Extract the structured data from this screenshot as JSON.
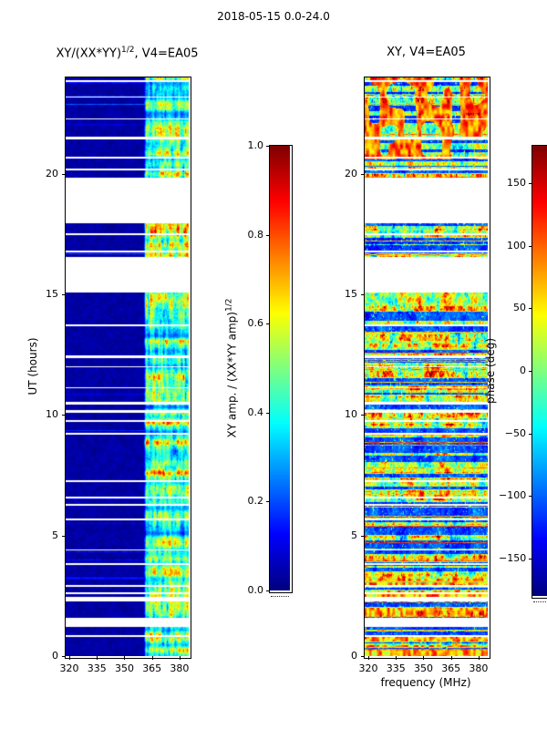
{
  "figure_title": "2018-05-15 0.0-24.0",
  "chart_data": [
    {
      "type": "heatmap",
      "panel": "left",
      "title": "XY/(XX*YY)^{1/2}, V4=EA05",
      "title_parts": [
        "XY/(XX*YY)",
        "1/2",
        ", V4=EA05"
      ],
      "xlabel": "",
      "ylabel": "UT (hours)",
      "x_axis": {
        "range_mhz": [
          318,
          385
        ],
        "ticks": [
          "320",
          "335",
          "350",
          "365",
          "380"
        ],
        "tick_values": [
          320,
          335,
          350,
          365,
          380
        ]
      },
      "y_axis": {
        "range_hours": [
          0,
          24
        ],
        "ticks": [
          "0",
          "5",
          "10",
          "15",
          "20"
        ],
        "tick_values": [
          0,
          5,
          10,
          15,
          20
        ]
      },
      "colormap": "jet",
      "clim": [
        0.0,
        1.0
      ],
      "colorbar": {
        "label": "XY amp. / (XX*YY amp)^{1/2}",
        "label_parts": [
          "XY amp. / (XX*YY amp)",
          "1/2"
        ],
        "ticks": [
          {
            "label": "1.0",
            "value": 1.0
          },
          {
            "label": "0.8",
            "value": 0.8
          },
          {
            "label": "0.6",
            "value": 0.6
          },
          {
            "label": "0.4",
            "value": 0.4
          },
          {
            "label": "0.2",
            "value": 0.2
          },
          {
            "label": "0.0",
            "value": 0.0
          }
        ]
      },
      "content_summary": {
        "background_amplitude": 0.05,
        "rfi_band_mhz": [
          361,
          385
        ],
        "rfi_band_amplitude": [
          0.3,
          0.9
        ],
        "data_gaps_ut": [
          [
            15.15,
            16.55
          ],
          [
            17.95,
            19.85
          ],
          [
            1.3,
            1.6
          ],
          [
            2.25,
            2.45
          ]
        ],
        "thin_scan_gaps": "regular thin white horizontal gaps every ~0.3-0.5 h"
      }
    },
    {
      "type": "heatmap",
      "panel": "right",
      "title": "XY, V4=EA05",
      "title_parts": [
        "XY, V4=EA05",
        "",
        ""
      ],
      "xlabel": "frequency (MHz)",
      "ylabel": "",
      "x_axis": {
        "range_mhz": [
          318,
          385
        ],
        "ticks": [
          "320",
          "335",
          "350",
          "365",
          "380"
        ],
        "tick_values": [
          320,
          335,
          350,
          365,
          380
        ]
      },
      "y_axis": {
        "range_hours": [
          0,
          24
        ],
        "ticks": [
          "0",
          "5",
          "10",
          "15",
          "20"
        ],
        "tick_values": [
          0,
          5,
          10,
          15,
          20
        ]
      },
      "colormap": "jet",
      "clim": [
        -180,
        180
      ],
      "colorbar": {
        "label": "phase (deg)",
        "label_parts": [
          "phase (deg)",
          ""
        ],
        "ticks": [
          {
            "label": "150",
            "value": 150
          },
          {
            "label": "100",
            "value": 100
          },
          {
            "label": "50",
            "value": 50
          },
          {
            "label": "0",
            "value": 0
          },
          {
            "label": "−50",
            "value": -50
          },
          {
            "label": "−100",
            "value": -100
          },
          {
            "label": "−150",
            "value": -150
          }
        ]
      },
      "content_summary": {
        "description": "noisy cross-hand phase, blue-dominated (~ -150 deg) with multicolour blobby structure and orange/red streaks",
        "data_gaps_ut": [
          [
            15.15,
            16.55
          ],
          [
            17.95,
            19.85
          ],
          [
            1.3,
            1.6
          ],
          [
            2.25,
            2.45
          ]
        ]
      }
    }
  ]
}
